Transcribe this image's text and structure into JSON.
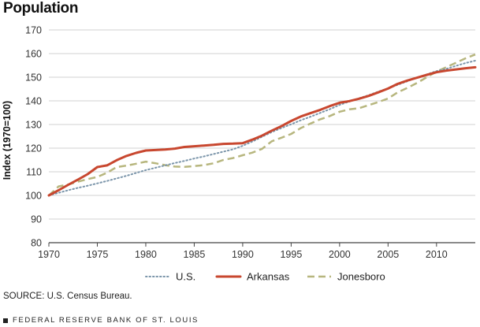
{
  "title": "Population",
  "source": "SOURCE: U.S. Census Bureau.",
  "footer": "FEDERAL RESERVE BANK OF ST. LOUIS",
  "colors": {
    "us": "#7b95aa",
    "arkansas": "#c8472f",
    "jonesboro": "#b7b67e",
    "grid": "#d2d2d2",
    "axis": "#444444"
  },
  "chart_data": {
    "type": "line",
    "title": "Population",
    "xlabel": "",
    "ylabel": "Index (1970=100)",
    "xlim": [
      1970,
      2014
    ],
    "ylim": [
      80,
      170
    ],
    "x_ticks": [
      1970,
      1975,
      1980,
      1985,
      1990,
      1995,
      2000,
      2005,
      2010
    ],
    "y_ticks": [
      80,
      90,
      100,
      110,
      120,
      130,
      140,
      150,
      160,
      170
    ],
    "grid": "horizontal",
    "legend_position": "bottom",
    "x": [
      1970,
      1971,
      1972,
      1973,
      1974,
      1975,
      1976,
      1977,
      1978,
      1979,
      1980,
      1981,
      1982,
      1983,
      1984,
      1985,
      1986,
      1987,
      1988,
      1989,
      1990,
      1991,
      1992,
      1993,
      1994,
      1995,
      1996,
      1997,
      1998,
      1999,
      2000,
      2001,
      2002,
      2003,
      2004,
      2005,
      2006,
      2007,
      2008,
      2009,
      2010,
      2011,
      2012,
      2013,
      2014
    ],
    "series": [
      {
        "name": "U.S.",
        "style": "dotted",
        "values": [
          100,
          101.1,
          102.2,
          103.2,
          104.1,
          105.1,
          106.1,
          107.2,
          108.3,
          109.5,
          110.7,
          111.7,
          112.7,
          113.7,
          114.6,
          115.6,
          116.5,
          117.5,
          118.5,
          119.5,
          121.0,
          122.8,
          124.8,
          126.8,
          128.5,
          130.1,
          131.8,
          133.3,
          134.9,
          136.5,
          138.3,
          139.7,
          141.1,
          142.4,
          143.9,
          145.3,
          146.8,
          148.3,
          149.8,
          151.2,
          152.6,
          153.5,
          154.8,
          156.0,
          157.0
        ]
      },
      {
        "name": "Arkansas",
        "style": "solid",
        "values": [
          100,
          102.2,
          104.5,
          106.7,
          109.0,
          112.0,
          112.7,
          114.9,
          116.7,
          118.0,
          119.0,
          119.2,
          119.4,
          119.8,
          120.5,
          120.8,
          121.1,
          121.4,
          121.8,
          121.9,
          122.1,
          123.6,
          125.3,
          127.4,
          129.3,
          131.5,
          133.4,
          134.8,
          136.2,
          137.8,
          139.2,
          139.9,
          140.9,
          142.1,
          143.6,
          145.2,
          147.2,
          148.6,
          149.8,
          151.0,
          152.1,
          152.8,
          153.3,
          153.8,
          154.2
        ]
      },
      {
        "name": "Jonesboro",
        "style": "dashed",
        "values": [
          100,
          103.8,
          104.6,
          105.8,
          106.9,
          107.8,
          109.6,
          112.0,
          112.6,
          113.4,
          114.3,
          113.6,
          112.8,
          112.2,
          112.1,
          112.4,
          112.8,
          113.6,
          115.0,
          115.8,
          117.0,
          118.1,
          119.7,
          122.9,
          124.4,
          126.0,
          128.5,
          130.4,
          132.2,
          133.6,
          135.4,
          136.4,
          136.9,
          138.2,
          139.5,
          141.0,
          143.6,
          145.5,
          147.6,
          150.0,
          152.4,
          154.2,
          156.1,
          158.0,
          159.6
        ]
      }
    ]
  }
}
